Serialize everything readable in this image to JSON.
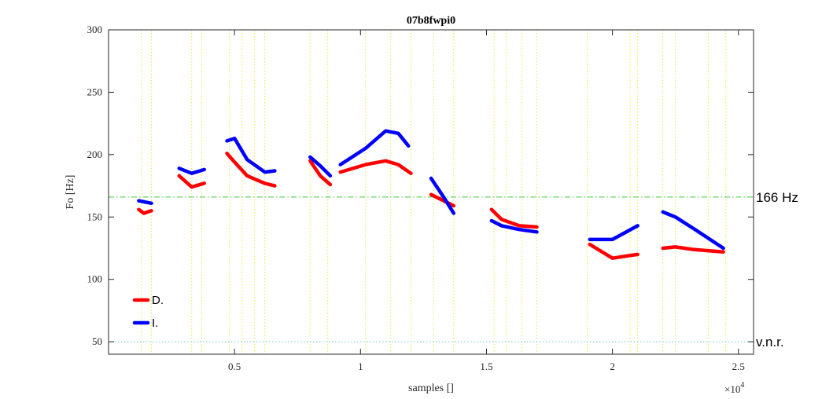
{
  "chart_data": {
    "type": "line",
    "title": "07b8fwpi0",
    "xlabel": "samples []",
    "ylabel": "Fo [Hz]",
    "x_exponent_label": "×10",
    "x_exponent_power": "4",
    "xlim": [
      0,
      25600
    ],
    "ylim": [
      40,
      300
    ],
    "x_ticks": [
      5000,
      10000,
      15000,
      20000,
      25000
    ],
    "x_tick_labels": [
      "0.5",
      "1",
      "1.5",
      "2",
      "2.5"
    ],
    "y_ticks": [
      50,
      100,
      150,
      200,
      250,
      300
    ],
    "y_tick_labels": [
      "50",
      "100",
      "150",
      "200",
      "250",
      "300"
    ],
    "grid": "vertical-dotted",
    "vertical_markers": [
      1300,
      1700,
      3300,
      3700,
      4800,
      5300,
      5800,
      6200,
      8000,
      8700,
      10200,
      11200,
      12000,
      12900,
      13700,
      15300,
      15800,
      16400,
      17000,
      19000,
      20700,
      21000,
      22000,
      22500,
      23800,
      24500
    ],
    "reference_lines": [
      {
        "y": 166,
        "label": "166 Hz",
        "color": "#33cc33",
        "style": "dash-dot"
      },
      {
        "y": 50,
        "label": "v.n.r.",
        "color": "#66cccc",
        "style": "dotted"
      }
    ],
    "legend_position": "bottom-left",
    "series": [
      {
        "name": "D.",
        "color": "#ff0000",
        "segments": [
          [
            [
              1200,
              156
            ],
            [
              1400,
              153
            ],
            [
              1700,
              155
            ]
          ],
          [
            [
              2800,
              183
            ],
            [
              3300,
              174
            ],
            [
              3800,
              177
            ]
          ],
          [
            [
              4700,
              201
            ],
            [
              5000,
              194
            ],
            [
              5500,
              183
            ],
            [
              6200,
              177
            ],
            [
              6600,
              175
            ]
          ],
          [
            [
              8000,
              195
            ],
            [
              8400,
              183
            ],
            [
              8800,
              176
            ]
          ],
          [
            [
              9200,
              186
            ],
            [
              10200,
              192
            ],
            [
              11000,
              195
            ],
            [
              11500,
              192
            ],
            [
              12000,
              185
            ]
          ],
          [
            [
              12800,
              168
            ],
            [
              13300,
              163
            ],
            [
              13700,
              159
            ]
          ],
          [
            [
              15200,
              156
            ],
            [
              15600,
              148
            ],
            [
              16300,
              143
            ],
            [
              17000,
              142
            ]
          ],
          [
            [
              19100,
              128
            ],
            [
              20000,
              117
            ],
            [
              21000,
              120
            ]
          ],
          [
            [
              22000,
              125
            ],
            [
              22500,
              126
            ],
            [
              23200,
              124
            ],
            [
              24400,
              122
            ]
          ]
        ]
      },
      {
        "name": "I.",
        "color": "#0000ff",
        "segments": [
          [
            [
              1200,
              163
            ],
            [
              1700,
              161
            ]
          ],
          [
            [
              2800,
              189
            ],
            [
              3300,
              185
            ],
            [
              3800,
              188
            ]
          ],
          [
            [
              4700,
              211
            ],
            [
              5000,
              213
            ],
            [
              5500,
              196
            ],
            [
              6200,
              186
            ],
            [
              6600,
              187
            ]
          ],
          [
            [
              8000,
              198
            ],
            [
              8400,
              191
            ],
            [
              8800,
              183
            ]
          ],
          [
            [
              9200,
              192
            ],
            [
              10200,
              205
            ],
            [
              11000,
              219
            ],
            [
              11500,
              217
            ],
            [
              11900,
              207
            ]
          ],
          [
            [
              12800,
              181
            ],
            [
              13300,
              166
            ],
            [
              13700,
              153
            ]
          ],
          [
            [
              15200,
              147
            ],
            [
              15600,
              143
            ],
            [
              16300,
              140
            ],
            [
              17000,
              138
            ]
          ],
          [
            [
              19100,
              132
            ],
            [
              20000,
              132
            ],
            [
              21000,
              143
            ]
          ],
          [
            [
              22000,
              154
            ],
            [
              22500,
              150
            ],
            [
              23200,
              141
            ],
            [
              24400,
              125
            ]
          ]
        ]
      }
    ]
  }
}
